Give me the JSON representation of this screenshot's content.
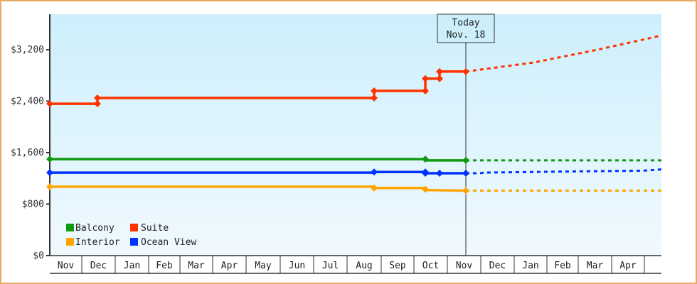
{
  "chart_data": {
    "type": "line",
    "title": "",
    "xlabel": "",
    "ylabel": "",
    "ylim": [
      0,
      3750
    ],
    "y_ticks": [
      {
        "value": 0,
        "label": "$0"
      },
      {
        "value": 800,
        "label": "$800"
      },
      {
        "value": 1600,
        "label": "$1,600"
      },
      {
        "value": 2400,
        "label": "$2,400"
      },
      {
        "value": 3200,
        "label": "$3,200"
      }
    ],
    "x_months": [
      "Nov",
      "Dec",
      "Jan",
      "Feb",
      "Mar",
      "Apr",
      "May",
      "Jun",
      "Jul",
      "Aug",
      "Sep",
      "Oct",
      "Nov",
      "Dec",
      "Jan",
      "Feb",
      "Mar",
      "Apr",
      ""
    ],
    "x_month_boundaries": [
      70,
      115,
      162,
      209,
      253,
      299,
      346,
      394,
      441,
      488,
      536,
      582,
      629,
      676,
      723,
      769,
      813,
      860,
      906,
      930
    ],
    "today_marker": {
      "line1": "Today",
      "line2": "Nov. 18",
      "x": 655
    },
    "grid": false,
    "legend": {
      "position": "lower-left",
      "entries": [
        "Balcony",
        "Suite",
        "Interior",
        "Ocean View"
      ]
    },
    "series": [
      {
        "name": "Balcony",
        "color": "#119911",
        "history": [
          [
            70,
            1500
          ],
          [
            598,
            1500
          ],
          [
            598,
            1480
          ],
          [
            655,
            1480
          ]
        ],
        "markers": [
          [
            70,
            1500
          ],
          [
            598,
            1500
          ],
          [
            655,
            1480
          ]
        ],
        "projection": [
          [
            655,
            1480
          ],
          [
            930,
            1480
          ]
        ]
      },
      {
        "name": "Suite",
        "color": "#ff3300",
        "history": [
          [
            70,
            2360
          ],
          [
            137,
            2360
          ],
          [
            137,
            2450
          ],
          [
            526,
            2450
          ],
          [
            526,
            2560
          ],
          [
            598,
            2560
          ],
          [
            598,
            2750
          ],
          [
            618,
            2750
          ],
          [
            618,
            2860
          ],
          [
            655,
            2860
          ]
        ],
        "markers": [
          [
            70,
            2360
          ],
          [
            137,
            2360
          ],
          [
            137,
            2450
          ],
          [
            526,
            2450
          ],
          [
            526,
            2560
          ],
          [
            598,
            2560
          ],
          [
            598,
            2750
          ],
          [
            618,
            2750
          ],
          [
            618,
            2860
          ],
          [
            655,
            2860
          ]
        ],
        "projection": [
          [
            655,
            2860
          ],
          [
            750,
            3000
          ],
          [
            840,
            3200
          ],
          [
            930,
            3420
          ]
        ]
      },
      {
        "name": "Interior",
        "color": "#ffa500",
        "history": [
          [
            70,
            1070
          ],
          [
            526,
            1070
          ],
          [
            526,
            1050
          ],
          [
            598,
            1050
          ],
          [
            598,
            1020
          ],
          [
            655,
            1010
          ]
        ],
        "markers": [
          [
            70,
            1070
          ],
          [
            526,
            1050
          ],
          [
            598,
            1030
          ],
          [
            655,
            1010
          ]
        ],
        "projection": [
          [
            655,
            1010
          ],
          [
            930,
            1010
          ]
        ]
      },
      {
        "name": "Ocean View",
        "color": "#0033ff",
        "history": [
          [
            70,
            1290
          ],
          [
            526,
            1290
          ],
          [
            526,
            1300
          ],
          [
            598,
            1300
          ],
          [
            598,
            1280
          ],
          [
            618,
            1280
          ],
          [
            655,
            1280
          ]
        ],
        "markers": [
          [
            70,
            1290
          ],
          [
            526,
            1300
          ],
          [
            598,
            1300
          ],
          [
            598,
            1280
          ],
          [
            618,
            1280
          ],
          [
            655,
            1280
          ]
        ],
        "projection": [
          [
            655,
            1280
          ],
          [
            675,
            1280
          ],
          [
            680,
            1290
          ],
          [
            750,
            1300
          ],
          [
            815,
            1310
          ],
          [
            905,
            1320
          ],
          [
            930,
            1340
          ]
        ]
      }
    ]
  },
  "legend": {
    "balcony": "Balcony",
    "suite": "Suite",
    "interior": "Interior",
    "ocean_view": "Ocean View"
  },
  "today": {
    "line1": "Today",
    "line2": "Nov. 18"
  },
  "colors": {
    "balcony": "#119911",
    "suite": "#ff3300",
    "interior": "#ffa500",
    "ocean_view": "#0033ff",
    "frame_border": "#e8a964",
    "plot_bg_top": "#cdeffc",
    "plot_bg_bottom": "#f0f9fe",
    "axis": "#333333"
  }
}
